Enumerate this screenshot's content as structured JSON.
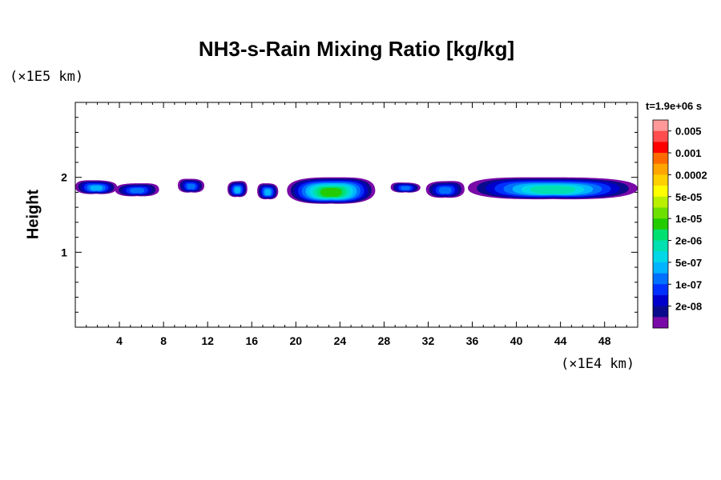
{
  "chart_data": {
    "type": "heatmap",
    "title": "NH3-s-Rain Mixing Ratio [kg/kg]",
    "ylabel": "Height",
    "y_unit": "(×1E5 km)",
    "x_unit": "(×1E4 km)",
    "time_label": "t=1.9e+06 s",
    "xlim": [
      0,
      51
    ],
    "ylim": [
      0,
      3
    ],
    "x_ticks": [
      4,
      8,
      12,
      16,
      20,
      24,
      28,
      32,
      36,
      40,
      44,
      48
    ],
    "y_ticks": [
      1,
      2
    ],
    "legend": {
      "levels": [
        "0.005",
        "0.001",
        "0.0002",
        "5e-05",
        "1e-05",
        "2e-06",
        "5e-07",
        "1e-07",
        "2e-08"
      ],
      "colors": [
        "#ff9999",
        "#ff4d4d",
        "#ff0000",
        "#ff6a00",
        "#ffa500",
        "#ffd000",
        "#ffff00",
        "#b8f000",
        "#6ee000",
        "#22cc00",
        "#00e070",
        "#00e0b0",
        "#00d8e8",
        "#00b4ff",
        "#0070ff",
        "#0030ff",
        "#0000cc",
        "#0a0a8c",
        "#7a0aa8"
      ]
    },
    "cloud_layer": {
      "y_range": [
        1.65,
        2.0
      ],
      "peak_value": "5e-05",
      "peak_x": 23.5,
      "segments": [
        {
          "x0": 0,
          "x1": 3.8,
          "y_top": 1.96,
          "y_bot": 1.78,
          "max_level": 13
        },
        {
          "x0": 3.6,
          "x1": 7.6,
          "y_top": 1.92,
          "y_bot": 1.75,
          "max_level": 14
        },
        {
          "x0": 9.3,
          "x1": 11.7,
          "y_top": 1.98,
          "y_bot": 1.8,
          "max_level": 14
        },
        {
          "x0": 13.8,
          "x1": 15.6,
          "y_top": 1.95,
          "y_bot": 1.74,
          "max_level": 13
        },
        {
          "x0": 16.5,
          "x1": 18.4,
          "y_top": 1.92,
          "y_bot": 1.71,
          "max_level": 13
        },
        {
          "x0": 19.2,
          "x1": 27.2,
          "y_top": 2.0,
          "y_bot": 1.65,
          "max_level": 9
        },
        {
          "x0": 28.6,
          "x1": 31.3,
          "y_top": 1.93,
          "y_bot": 1.8,
          "max_level": 14
        },
        {
          "x0": 31.8,
          "x1": 35.3,
          "y_top": 1.95,
          "y_bot": 1.73,
          "max_level": 14
        },
        {
          "x0": 35.6,
          "x1": 51,
          "y_top": 2.0,
          "y_bot": 1.71,
          "max_level": 11
        }
      ]
    }
  }
}
